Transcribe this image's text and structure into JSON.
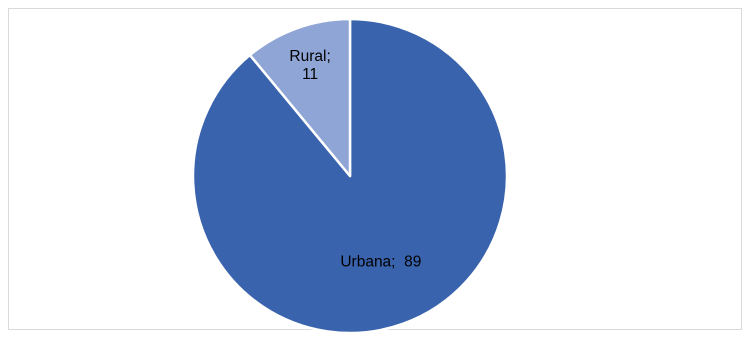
{
  "chart_data": {
    "type": "pie",
    "slices": [
      {
        "label": "Urbana",
        "value": 89,
        "color": "#3a63ad",
        "data_label_lines": [
          "Urbana;  89"
        ]
      },
      {
        "label": "Rural",
        "value": 11,
        "color": "#8fa5d6",
        "data_label_lines": [
          "Rural;",
          "11"
        ]
      }
    ],
    "start_angle_deg": 0,
    "direction": "clockwise",
    "legend": "none",
    "slice_border_color": "#ffffff"
  }
}
